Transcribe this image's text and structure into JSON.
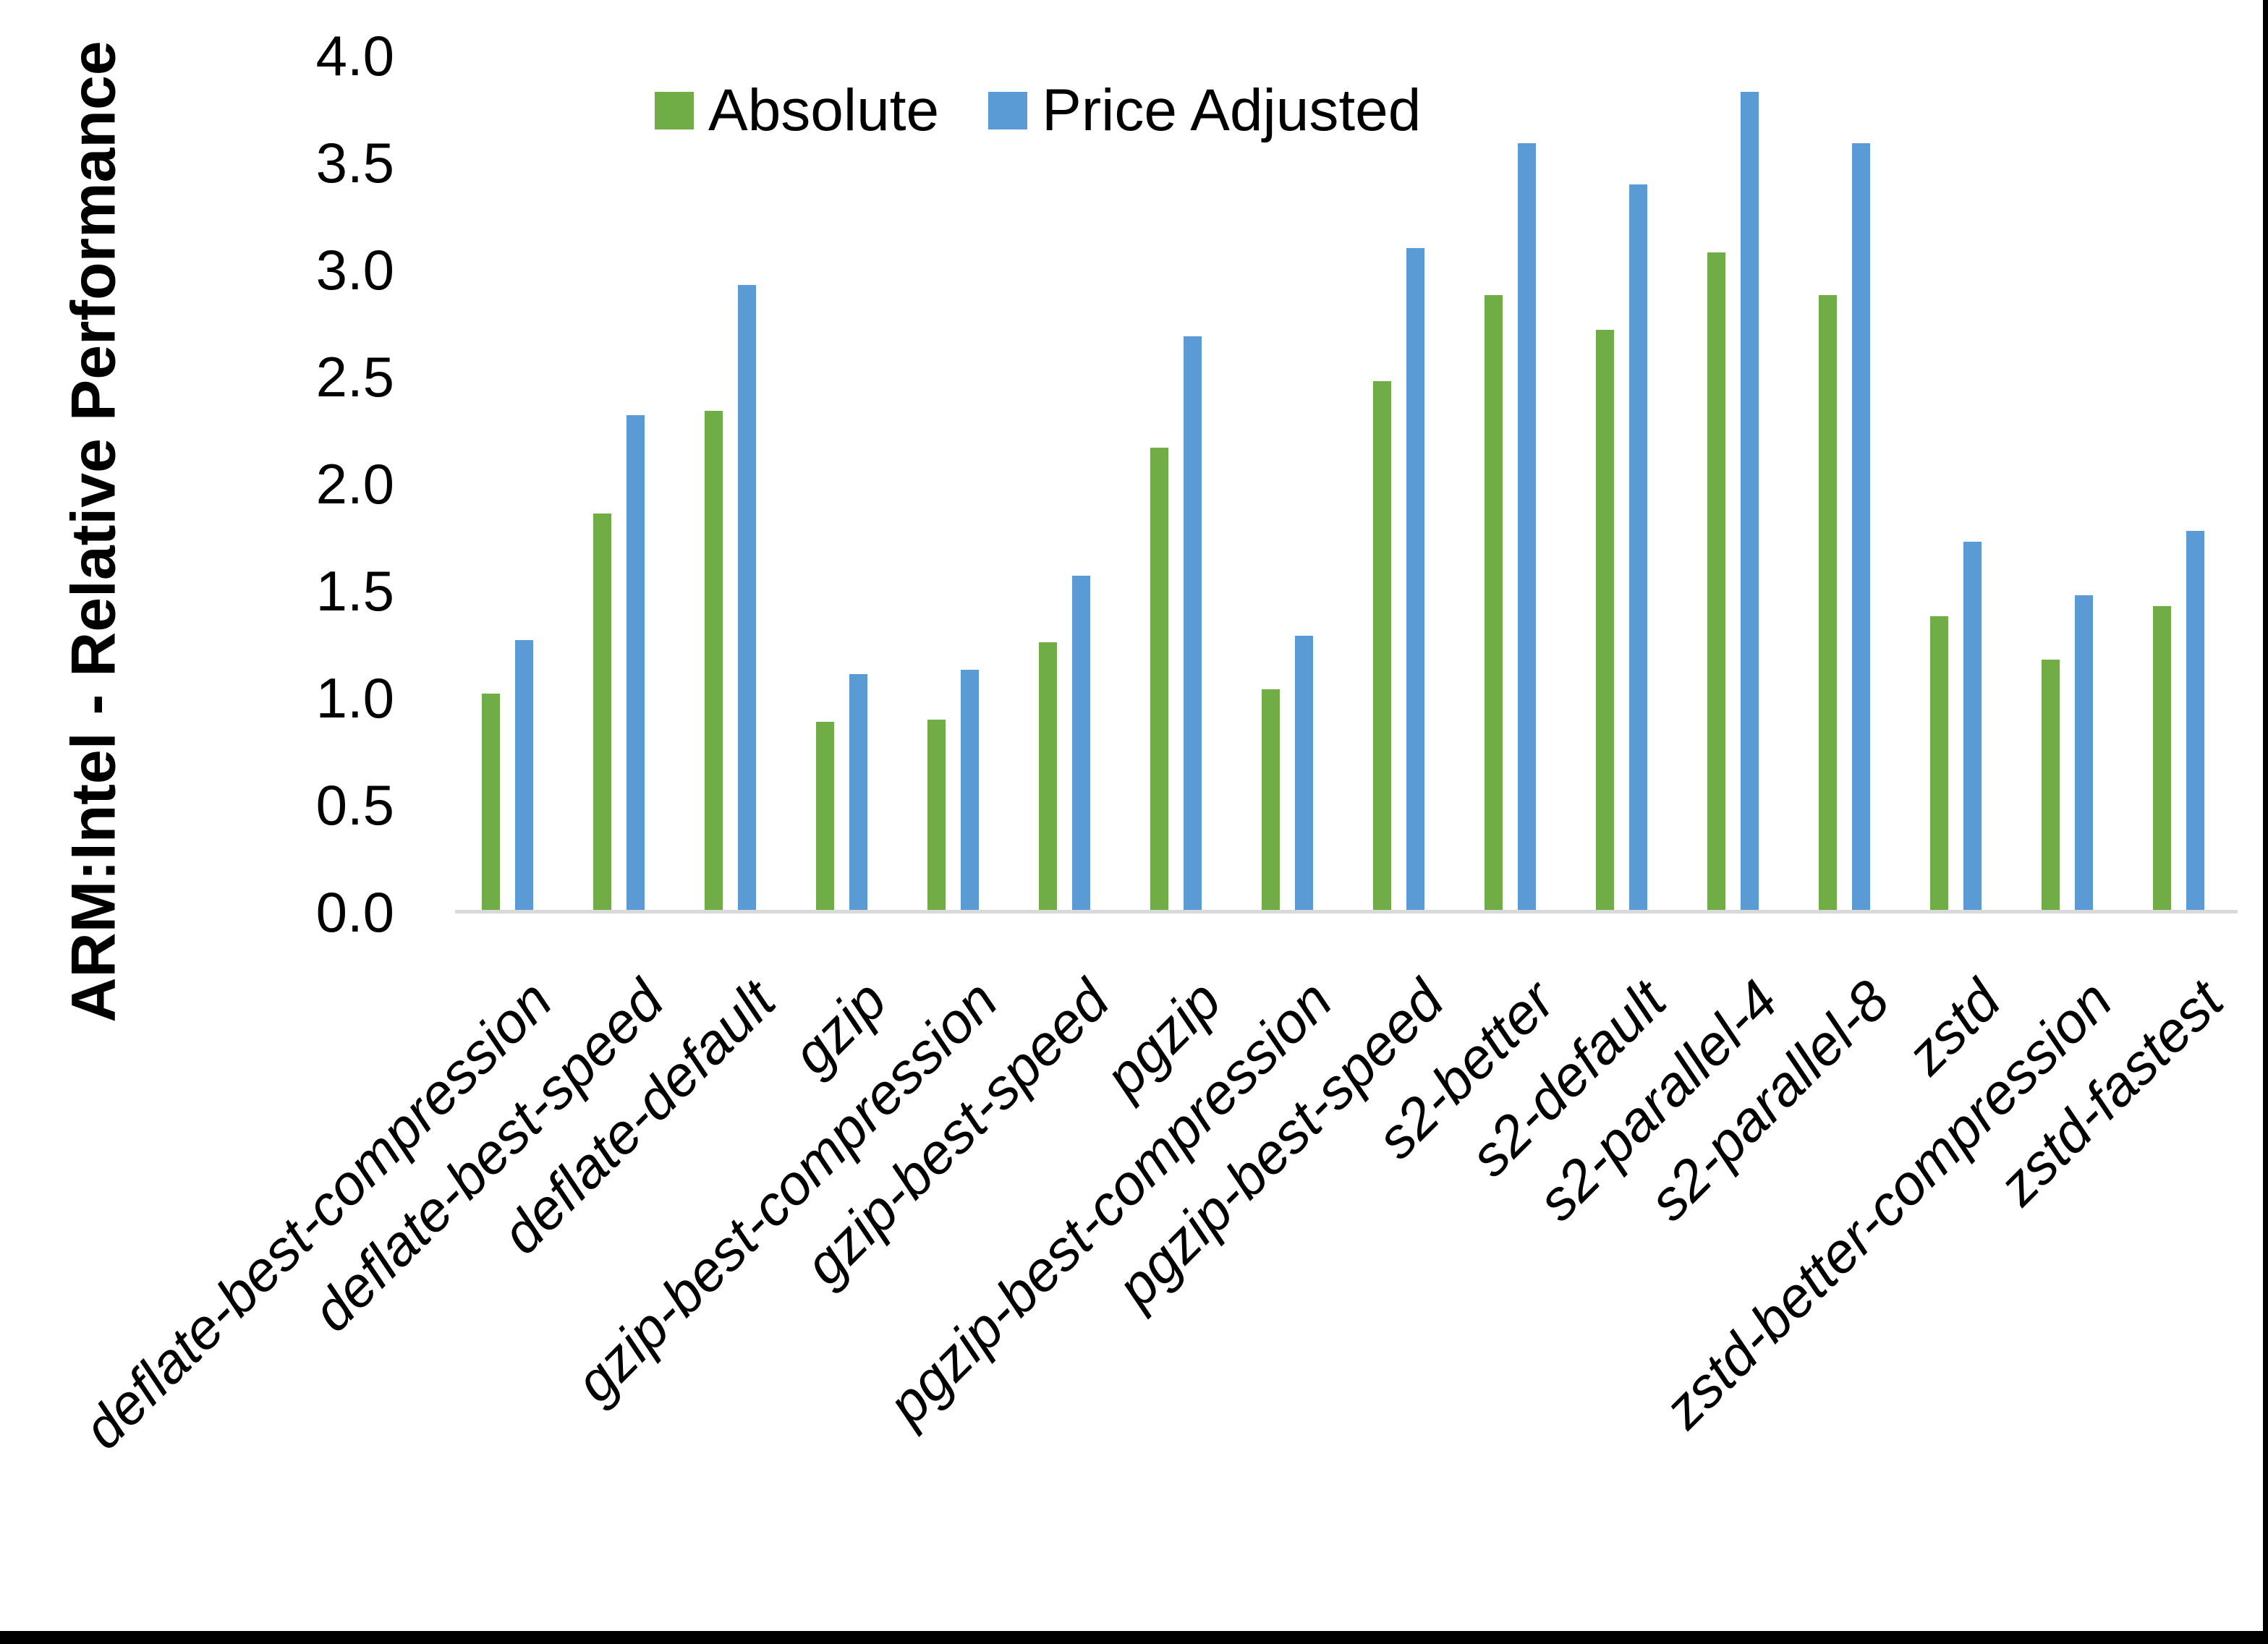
{
  "chart_data": {
    "type": "bar",
    "title": "",
    "xlabel": "",
    "ylabel": "ARM:Intel - Relative Performance",
    "ylim": [
      0.0,
      4.0
    ],
    "ytick_step": 0.5,
    "yticks": [
      "0.0",
      "0.5",
      "1.0",
      "1.5",
      "2.0",
      "2.5",
      "3.0",
      "3.5",
      "4.0"
    ],
    "grid": false,
    "legend_position": "top-center",
    "categories": [
      "deflate-best-compression",
      "deflate-best-speed",
      "deflate-default",
      "gzip",
      "gzip-best-compression",
      "gzip-best-speed",
      "pgzip",
      "pgzip-best-compression",
      "pgzip-best-speed",
      "s2-better",
      "s2-default",
      "s2-parallel-4",
      "s2-parallel-8",
      "zstd",
      "zstd-better-compression",
      "zstd-fastest"
    ],
    "series": [
      {
        "name": "Absolute",
        "color": "#70AD47",
        "values": [
          1.01,
          1.85,
          2.33,
          0.88,
          0.89,
          1.25,
          2.16,
          1.03,
          2.47,
          2.87,
          2.71,
          3.07,
          2.87,
          1.37,
          1.17,
          1.42
        ]
      },
      {
        "name": "Price Adjusted",
        "color": "#5B9BD5",
        "values": [
          1.26,
          2.31,
          2.92,
          1.1,
          1.12,
          1.56,
          2.68,
          1.28,
          3.09,
          3.58,
          3.39,
          3.82,
          3.58,
          1.72,
          1.47,
          1.77
        ]
      }
    ],
    "colors": {
      "axis_line": "#d9d9d9",
      "text": "#000000",
      "background": "#ffffff",
      "border": "#000000"
    }
  }
}
